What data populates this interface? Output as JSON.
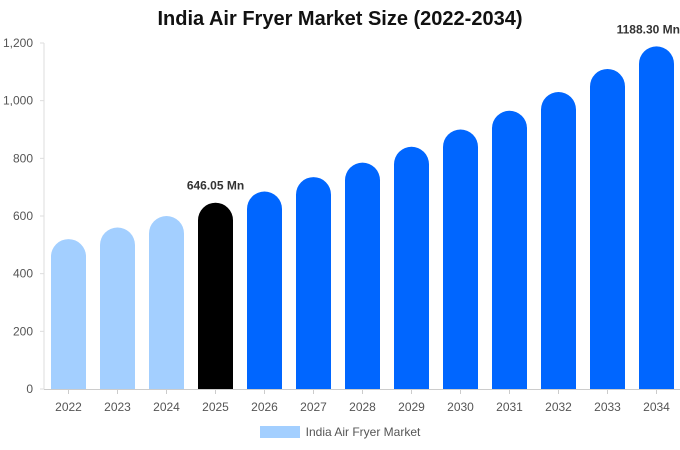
{
  "chart_data": {
    "type": "bar",
    "title": "India Air Fryer Market Size (2022-2034)",
    "xlabel": "",
    "ylabel": "",
    "categories": [
      "2022",
      "2023",
      "2024",
      "2025",
      "2026",
      "2027",
      "2028",
      "2029",
      "2030",
      "2031",
      "2032",
      "2033",
      "2034"
    ],
    "series": [
      {
        "name": "India Air Fryer Market",
        "values": [
          520,
          560,
          600,
          646.05,
          685,
          735,
          785,
          840,
          900,
          965,
          1030,
          1110,
          1188.3
        ]
      }
    ],
    "ylim": [
      0,
      1200
    ],
    "yticks": [
      0,
      200,
      400,
      600,
      800,
      1000,
      1200
    ],
    "ytick_labels": [
      "0",
      "200",
      "400",
      "600",
      "800",
      "1,000",
      "1,200"
    ],
    "annotations": [
      {
        "category": "2025",
        "text": "646.05 Mn"
      },
      {
        "category": "2034",
        "text": "1188.30 Mn"
      }
    ],
    "bar_colors": {
      "historical": "#a3cfff",
      "current": "#000000",
      "forecast": "#0066ff"
    },
    "grid": false,
    "legend_position": "bottom-center"
  }
}
